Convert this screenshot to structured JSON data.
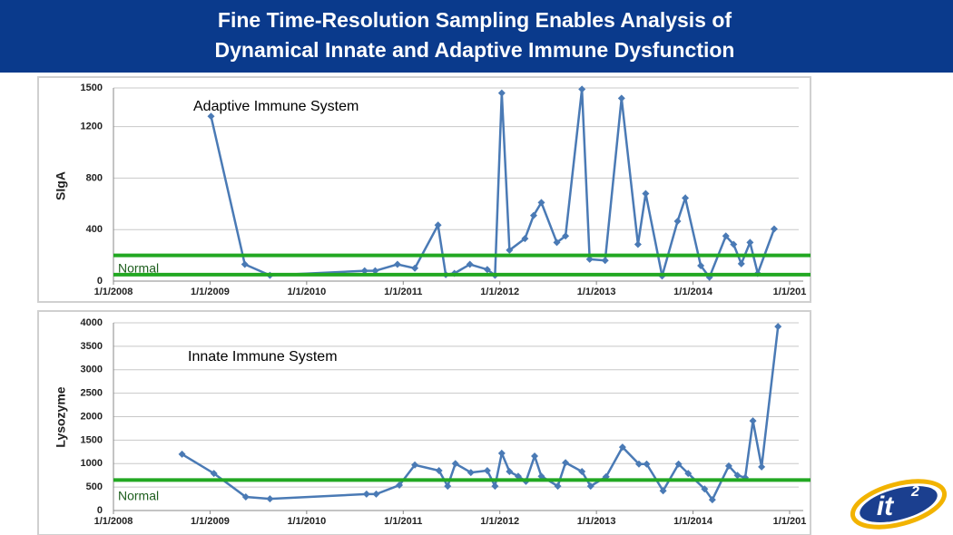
{
  "title": [
    "Fine Time-Resolution Sampling Enables Analysis of",
    "Dynamical Innate and Adaptive Immune Dysfunction"
  ],
  "logo": {
    "text": "it",
    "superscript": "2"
  },
  "chart_data": [
    {
      "type": "line",
      "annotation": "Adaptive Immune System",
      "y_label": "SIgA",
      "color": "#4a7ab5",
      "marker": "diamond",
      "x": [
        2009.01,
        2009.36,
        2009.62,
        2010.6,
        2010.71,
        2010.94,
        2011.12,
        2011.36,
        2011.44,
        2011.53,
        2011.69,
        2011.87,
        2011.95,
        2012.02,
        2012.1,
        2012.26,
        2012.35,
        2012.43,
        2012.59,
        2012.68,
        2012.85,
        2012.93,
        2013.09,
        2013.26,
        2013.43,
        2013.51,
        2013.68,
        2013.84,
        2013.92,
        2014.08,
        2014.17,
        2014.34,
        2014.42,
        2014.5,
        2014.59,
        2014.67,
        2014.84
      ],
      "values": [
        1280,
        130,
        45,
        80,
        80,
        130,
        100,
        435,
        50,
        60,
        130,
        90,
        45,
        1460,
        240,
        330,
        510,
        610,
        300,
        350,
        1490,
        170,
        160,
        1420,
        285,
        680,
        40,
        465,
        645,
        120,
        30,
        350,
        285,
        135,
        300,
        60,
        405
      ],
      "xlim": [
        2008,
        2015
      ],
      "xticks": [
        {
          "value": 2008,
          "label": "1/1/2008"
        },
        {
          "value": 2009,
          "label": "1/1/2009"
        },
        {
          "value": 2010,
          "label": "1/1/2010"
        },
        {
          "value": 2011,
          "label": "1/1/2011"
        },
        {
          "value": 2012,
          "label": "1/1/2012"
        },
        {
          "value": 2013,
          "label": "1/1/2013"
        },
        {
          "value": 2014,
          "label": "1/1/2014"
        },
        {
          "value": 2015,
          "label": "1/1/201"
        }
      ],
      "ylim": [
        0,
        1500
      ],
      "yticks": [
        0,
        400,
        800,
        1200,
        1500
      ],
      "grid": true,
      "normal_lines": [
        200,
        50
      ],
      "normal_label": "Normal",
      "normal_color": "#22a822"
    },
    {
      "type": "line",
      "annotation": "Innate Immune System",
      "y_label": "Lysozyme",
      "color": "#4a7ab5",
      "marker": "diamond",
      "x": [
        2008.71,
        2009.04,
        2009.37,
        2009.62,
        2010.62,
        2010.72,
        2010.96,
        2011.12,
        2011.37,
        2011.46,
        2011.54,
        2011.7,
        2011.87,
        2011.95,
        2012.02,
        2012.1,
        2012.19,
        2012.27,
        2012.36,
        2012.43,
        2012.6,
        2012.68,
        2012.85,
        2012.94,
        2013.1,
        2013.27,
        2013.44,
        2013.52,
        2013.69,
        2013.85,
        2013.95,
        2014.12,
        2014.2,
        2014.37,
        2014.46,
        2014.54,
        2014.62,
        2014.71,
        2014.88
      ],
      "values": [
        1200,
        790,
        290,
        250,
        350,
        350,
        540,
        970,
        850,
        520,
        1000,
        810,
        850,
        520,
        1220,
        830,
        730,
        620,
        1160,
        730,
        520,
        1020,
        830,
        520,
        720,
        1350,
        990,
        990,
        420,
        990,
        790,
        460,
        230,
        950,
        750,
        700,
        1910,
        930,
        3920
      ],
      "xlim": [
        2008,
        2015
      ],
      "xticks": [
        {
          "value": 2008,
          "label": "1/1/2008"
        },
        {
          "value": 2009,
          "label": "1/1/2009"
        },
        {
          "value": 2010,
          "label": "1/1/2010"
        },
        {
          "value": 2011,
          "label": "1/1/2011"
        },
        {
          "value": 2012,
          "label": "1/1/2012"
        },
        {
          "value": 2013,
          "label": "1/1/2013"
        },
        {
          "value": 2014,
          "label": "1/1/2014"
        },
        {
          "value": 2015,
          "label": "1/1/201"
        }
      ],
      "ylim": [
        0,
        4000
      ],
      "yticks": [
        0,
        500,
        1000,
        1500,
        2000,
        2500,
        3000,
        3500,
        4000
      ],
      "grid": true,
      "normal_lines": [
        650
      ],
      "normal_label": "Normal",
      "normal_color": "#22a822"
    }
  ]
}
